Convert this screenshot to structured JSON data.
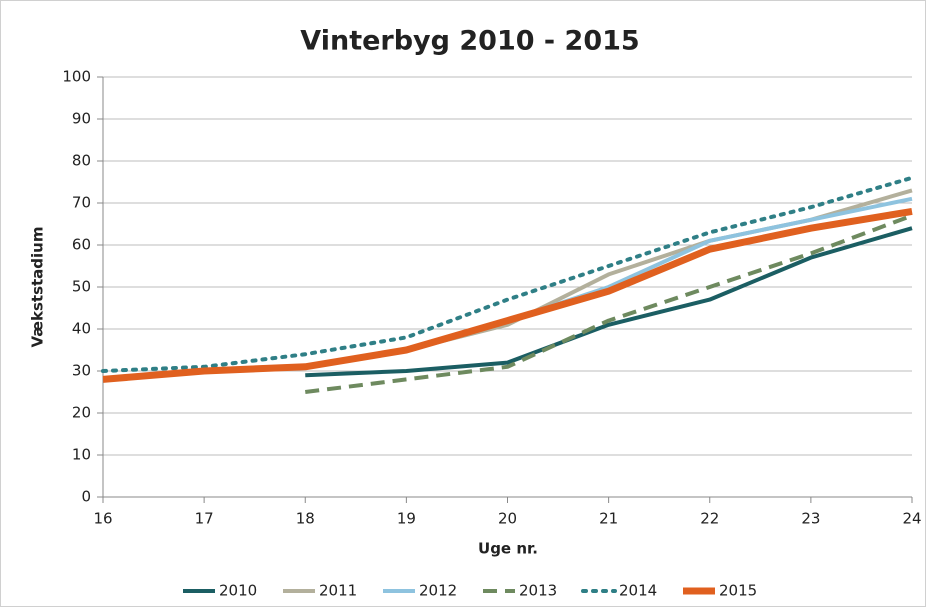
{
  "chart_data": {
    "type": "line",
    "title": "Vinterbyg 2010 - 2015",
    "x_label": "Uge nr.",
    "y_label": "Vækststadium",
    "x": [
      16,
      17,
      18,
      19,
      20,
      21,
      22,
      23,
      24
    ],
    "xlim": [
      16,
      24
    ],
    "xticks": [
      16,
      17,
      18,
      19,
      20,
      21,
      22,
      23,
      24
    ],
    "ylim": [
      0,
      100
    ],
    "yticks": [
      0,
      10,
      20,
      30,
      40,
      50,
      60,
      70,
      80,
      90,
      100
    ],
    "grid": true,
    "legend": "bottom",
    "series": [
      {
        "name": "2010",
        "color": "#1b5e63",
        "dash": "solid",
        "width": 4,
        "values": [
          null,
          null,
          29,
          30,
          32,
          41,
          47,
          57,
          64
        ]
      },
      {
        "name": "2011",
        "color": "#b3b09c",
        "dash": "solid",
        "width": 4,
        "values": [
          null,
          null,
          31,
          35,
          41,
          53,
          61,
          66,
          73
        ]
      },
      {
        "name": "2012",
        "color": "#8ec3df",
        "dash": "solid",
        "width": 4,
        "values": [
          null,
          null,
          31,
          35,
          42,
          50,
          61,
          66,
          71
        ]
      },
      {
        "name": "2013",
        "color": "#6e8a5f",
        "dash": "dashed",
        "width": 4,
        "values": [
          null,
          null,
          25,
          28,
          31,
          42,
          50,
          58,
          67
        ]
      },
      {
        "name": "2014",
        "color": "#2f7f86",
        "dash": "dotted",
        "width": 4,
        "values": [
          30,
          31,
          34,
          38,
          47,
          55,
          63,
          69,
          76
        ]
      },
      {
        "name": "2015",
        "color": "#e0601f",
        "dash": "solid",
        "width": 7,
        "values": [
          28,
          30,
          31,
          35,
          42,
          49,
          59,
          64,
          68
        ]
      }
    ]
  }
}
